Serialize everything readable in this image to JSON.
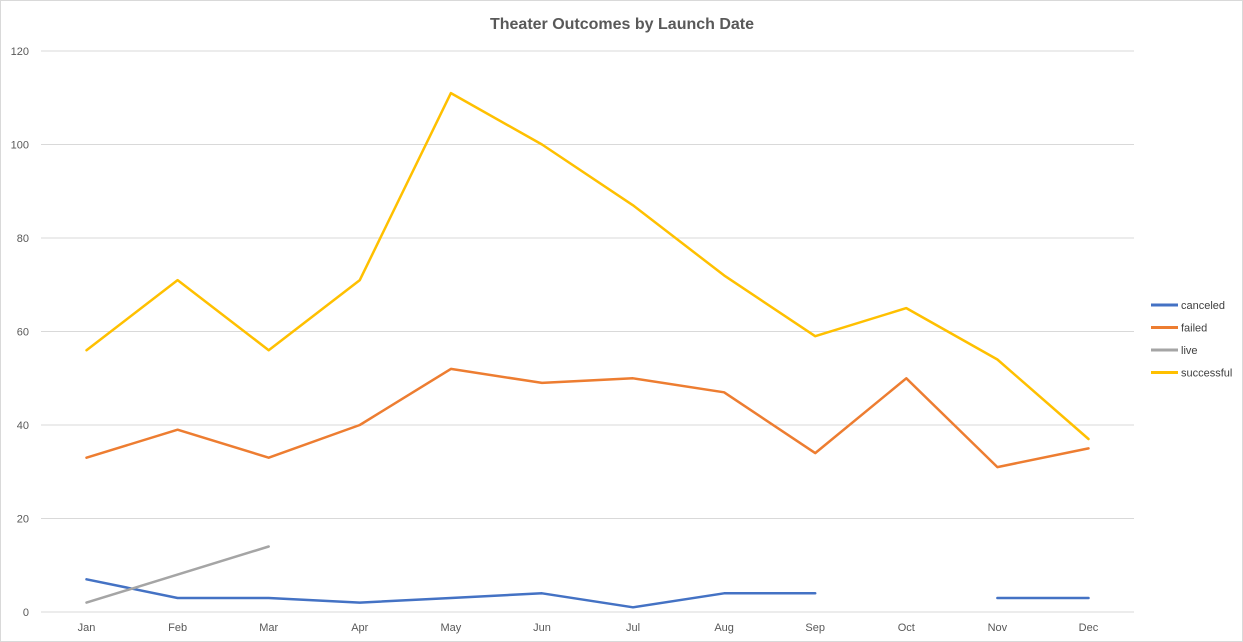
{
  "chart_data": {
    "type": "line",
    "title": "Theater Outcomes by Launch Date",
    "categories": [
      "Jan",
      "Feb",
      "Mar",
      "Apr",
      "May",
      "Jun",
      "Jul",
      "Aug",
      "Sep",
      "Oct",
      "Nov",
      "Dec"
    ],
    "ylim": [
      0,
      120
    ],
    "yticks": [
      0,
      20,
      40,
      60,
      80,
      100,
      120
    ],
    "grid": true,
    "legend_position": "right",
    "series": [
      {
        "name": "canceled",
        "color": "#4472C4",
        "values": [
          7,
          3,
          3,
          2,
          3,
          4,
          1,
          4,
          4,
          null,
          3,
          3
        ]
      },
      {
        "name": "failed",
        "color": "#ED7D31",
        "values": [
          33,
          39,
          33,
          40,
          52,
          49,
          50,
          47,
          34,
          50,
          31,
          35
        ]
      },
      {
        "name": "live",
        "color": "#A5A5A5",
        "values": [
          2,
          8,
          14,
          null,
          null,
          null,
          null,
          null,
          null,
          null,
          null,
          null
        ]
      },
      {
        "name": "successful",
        "color": "#FFC000",
        "values": [
          56,
          71,
          56,
          71,
          111,
          100,
          87,
          72,
          59,
          65,
          54,
          37
        ]
      }
    ]
  }
}
